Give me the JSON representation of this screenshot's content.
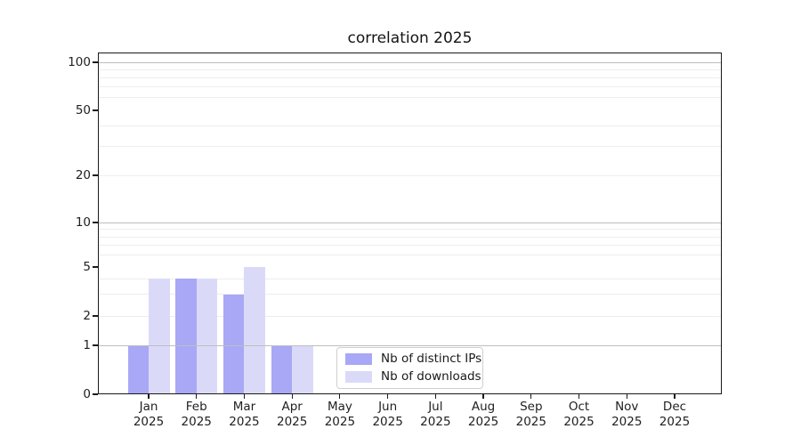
{
  "chart_data": {
    "type": "bar",
    "title": "correlation 2025",
    "categories": [
      "Jan",
      "Feb",
      "Mar",
      "Apr",
      "May",
      "Jun",
      "Jul",
      "Aug",
      "Sep",
      "Oct",
      "Nov",
      "Dec"
    ],
    "x_year_label": "2025",
    "series": [
      {
        "name": "Nb of distinct IPs",
        "key": "distinct-ips",
        "color": "#a8a8f6",
        "values": [
          1,
          4,
          3,
          1,
          0,
          0,
          0,
          0,
          0,
          0,
          0,
          0
        ]
      },
      {
        "name": "Nb of downloads",
        "key": "downloads",
        "color": "#dadaf8",
        "values": [
          4,
          4,
          5,
          1,
          0,
          0,
          0,
          0,
          0,
          0,
          0,
          0
        ]
      }
    ],
    "yscale": "symlog",
    "ylim": [
      0,
      100
    ],
    "ytick_values": [
      0,
      1,
      2,
      5,
      10,
      20,
      50,
      100
    ],
    "ytick_labels": [
      "0",
      "1",
      "2",
      "5",
      "10",
      "20",
      "50",
      "100"
    ],
    "minor_grid_values": [
      2,
      3,
      4,
      6,
      7,
      8,
      9,
      20,
      30,
      40,
      60,
      70,
      80,
      90
    ],
    "major_grid_values": [
      1,
      10,
      100
    ],
    "grid": true,
    "legend_position": "lower center",
    "colors": {
      "background": "#ffffff",
      "spine": "#1a1a1a",
      "major_grid": "#bdbdbd",
      "minor_grid": "#ededed",
      "text": "#1f1f1f"
    }
  }
}
